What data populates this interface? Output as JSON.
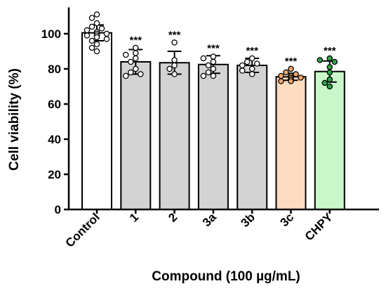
{
  "chart_data": {
    "type": "bar",
    "title": "",
    "xlabel": "Compound (100 µg/mL)",
    "ylabel": "Cell viability (%)",
    "ylim": [
      0,
      115
    ],
    "yticks": [
      0,
      20,
      40,
      60,
      80,
      100
    ],
    "grid": false,
    "categories": [
      "Control",
      "1",
      "2",
      "3a",
      "3b",
      "3c",
      "CHPY"
    ],
    "values": [
      100.5,
      84,
      83.5,
      82.5,
      82,
      75.5,
      78.5
    ],
    "errors": [
      4.5,
      7,
      6.5,
      5,
      4,
      2,
      6
    ],
    "significance": [
      "",
      "***",
      "***",
      "***",
      "***",
      "***",
      "***"
    ],
    "bar_colors": [
      "#ffffff",
      "#d3d3d3",
      "#d3d3d3",
      "#d3d3d3",
      "#d3d3d3",
      "#fddcbf",
      "#c9f7c9"
    ],
    "point_colors": [
      "#ffffff",
      "#ffffff",
      "#ffffff",
      "#ffffff",
      "#ffffff",
      "#f3a86b",
      "#2fa34a"
    ],
    "points": [
      [
        111,
        109,
        106,
        104,
        103,
        102,
        101,
        100,
        100,
        99,
        99,
        98,
        97,
        96,
        94,
        92,
        90
      ],
      [
        92,
        89,
        88,
        86,
        84,
        80,
        78,
        77,
        76
      ],
      [
        95,
        85,
        82,
        80,
        77
      ],
      [
        87,
        86,
        84,
        82,
        80,
        78,
        76,
        76
      ],
      [
        86,
        84,
        83,
        82,
        80,
        79,
        77
      ],
      [
        80,
        78,
        77,
        76,
        76,
        75,
        75,
        74,
        74,
        73,
        73
      ],
      [
        86,
        85,
        84,
        81,
        78,
        74,
        72,
        70
      ]
    ]
  }
}
